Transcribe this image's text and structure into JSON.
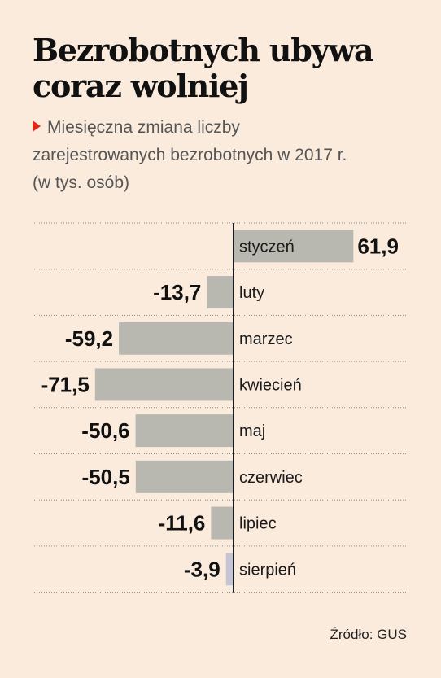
{
  "header": {
    "title": "Bezrobotnych ubywa coraz wolniej",
    "subtitle": "Miesięczna zmiana liczby zarejestrowanych bezrobotnych w 2017 r. (w tys. osób)"
  },
  "chart_data": {
    "type": "bar",
    "orientation": "horizontal",
    "categories": [
      "styczeń",
      "luty",
      "marzec",
      "kwiecień",
      "maj",
      "czerwiec",
      "lipiec",
      "sierpień"
    ],
    "values": [
      61.9,
      -13.7,
      -59.2,
      -71.5,
      -50.6,
      -50.5,
      -11.6,
      -3.9
    ],
    "value_labels": [
      "61,9",
      "-13,7",
      "-59,2",
      "-71,5",
      "-50,6",
      "-50,5",
      "-11,6",
      "-3,9"
    ],
    "bar_color": "#b8b8b0",
    "highlight_color": "#c4c4d4",
    "highlight_index": 7,
    "axis_color": "#1a1a1a",
    "grid": "dotted"
  },
  "footer": {
    "source": "Źródło: GUS"
  }
}
